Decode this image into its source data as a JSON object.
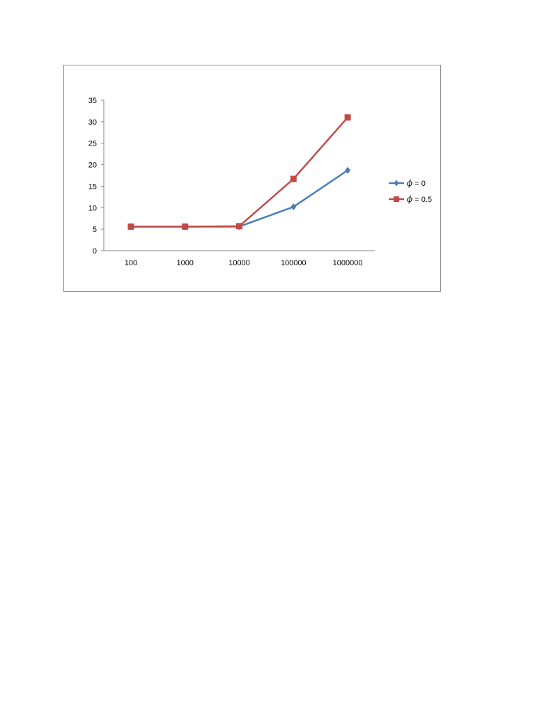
{
  "chart_data": {
    "type": "line",
    "title": "",
    "xlabel": "",
    "ylabel": "",
    "categories": [
      "100",
      "1000",
      "10000",
      "100000",
      "1000000"
    ],
    "ylim": [
      0,
      35
    ],
    "yticks": [
      0,
      5,
      10,
      15,
      20,
      25,
      30,
      35
    ],
    "grid": false,
    "legend": "right",
    "series": [
      {
        "name": "ϕ = 0",
        "symbol": "ϕ",
        "label_suffix": " = 0",
        "color": "#4a7ebb",
        "marker": "diamond",
        "values": [
          5.6,
          5.6,
          5.6,
          10.2,
          18.7
        ]
      },
      {
        "name": "ϕ = 0.5",
        "symbol": "ϕ",
        "label_suffix": " = 0.5",
        "color": "#be4b48",
        "marker": "square",
        "values": [
          5.6,
          5.6,
          5.7,
          16.7,
          31.0
        ]
      }
    ]
  }
}
